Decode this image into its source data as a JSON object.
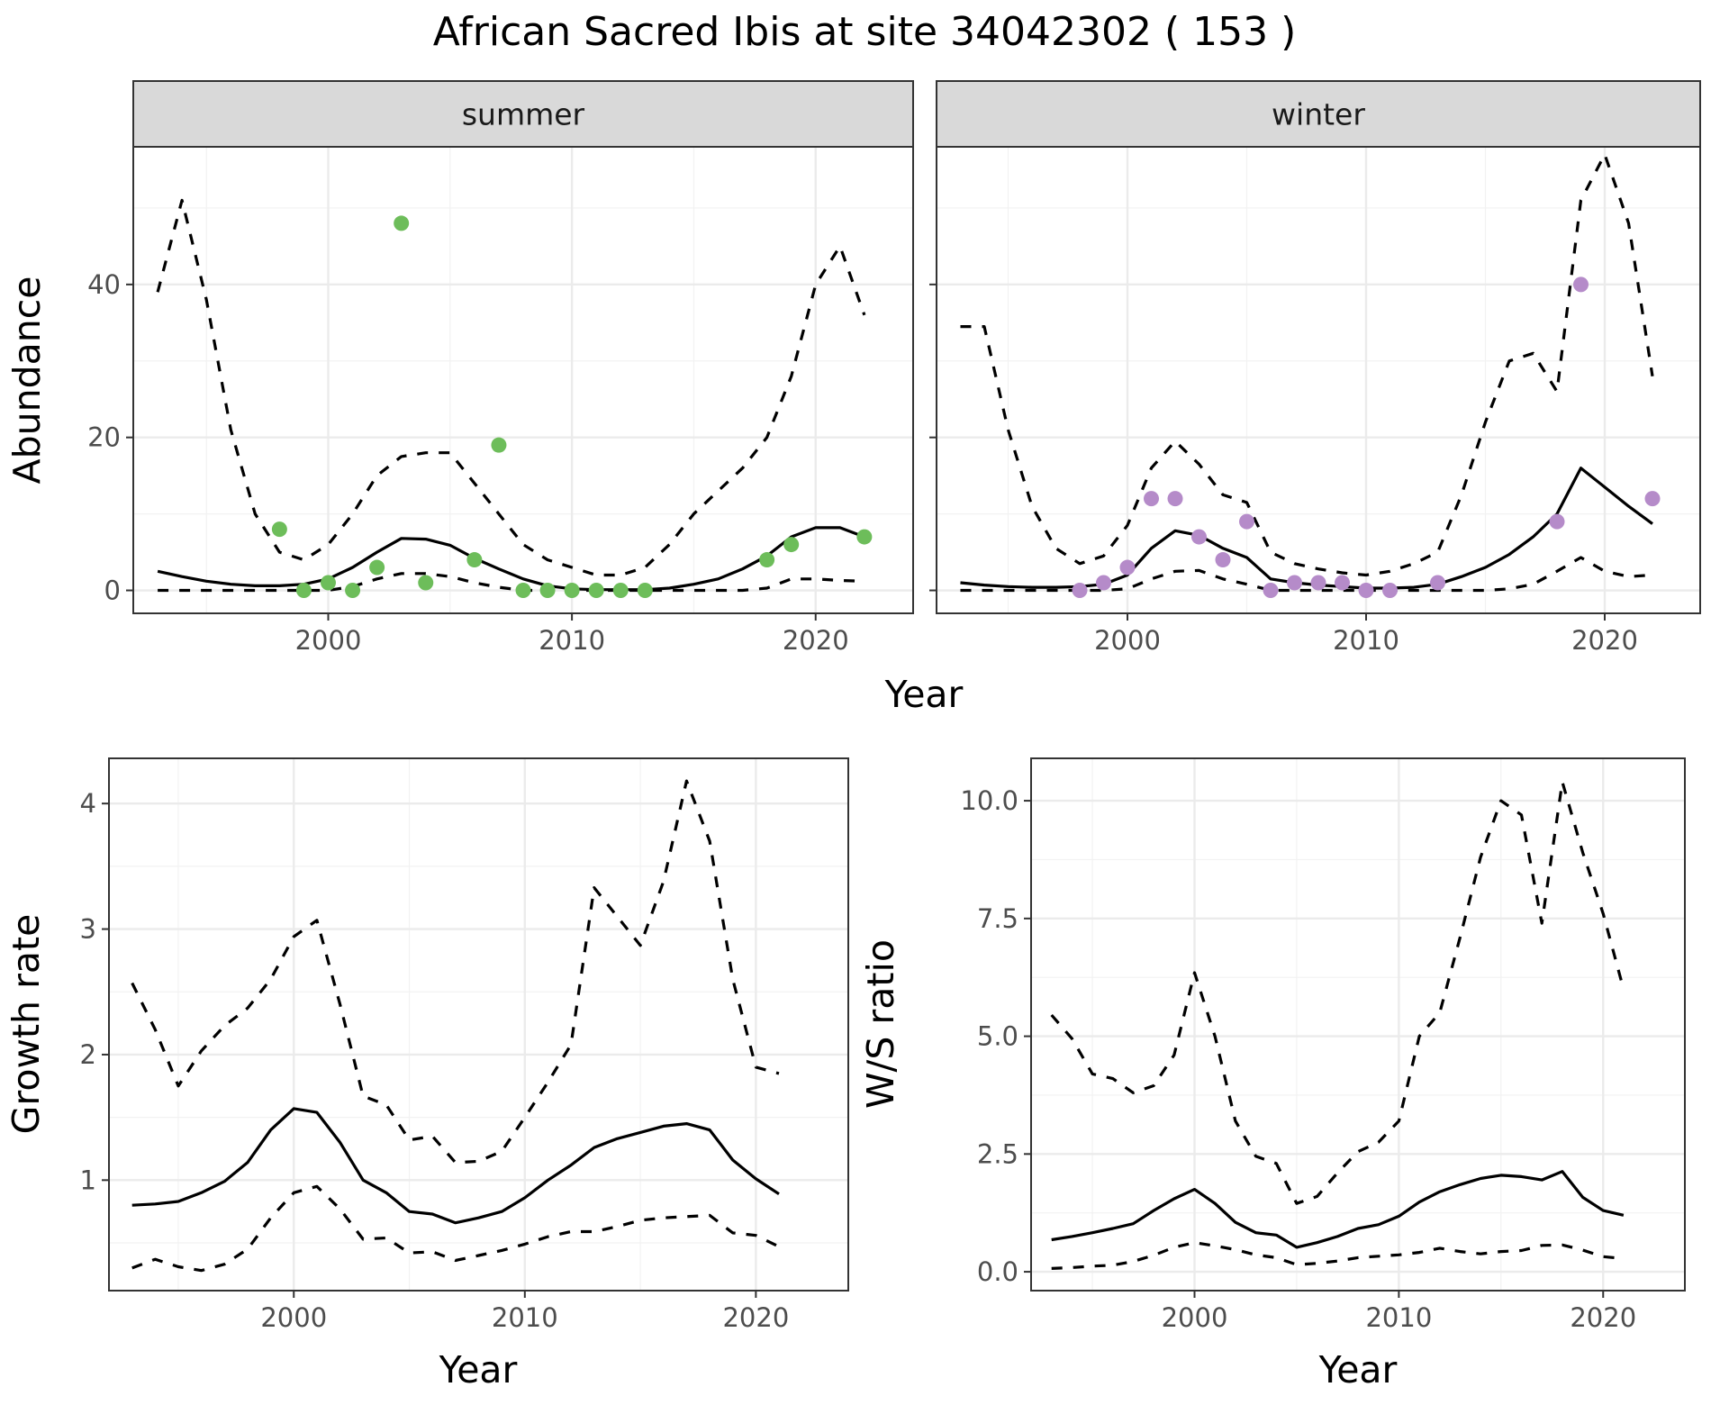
{
  "title": "African Sacred Ibis at site 34042302 ( 153 )",
  "colors": {
    "summer_points": "#6dbd5a",
    "winter_points": "#b58bc9",
    "lines": "#000000"
  },
  "chart_data": [
    {
      "type": "line",
      "name": "summer",
      "facet_label": "summer",
      "xlabel": "",
      "ylabel": "Abundance",
      "xlim": [
        1992,
        2024
      ],
      "ylim": [
        -3,
        58
      ],
      "x_ticks": [
        2000,
        2010,
        2020
      ],
      "y_ticks": [
        0,
        20,
        40
      ],
      "x_tick_labels": [
        "2000",
        "2010",
        "2020"
      ],
      "y_tick_labels": [
        "0",
        "20",
        "40"
      ],
      "x": [
        1993,
        1994,
        1995,
        1996,
        1997,
        1998,
        1999,
        2000,
        2001,
        2002,
        2003,
        2004,
        2005,
        2006,
        2007,
        2008,
        2009,
        2010,
        2011,
        2012,
        2013,
        2014,
        2015,
        2016,
        2017,
        2018,
        2019,
        2020,
        2021,
        2022
      ],
      "series": [
        {
          "role": "estimate",
          "values": [
            2.5,
            1.8,
            1.2,
            0.8,
            0.6,
            0.6,
            0.8,
            1.5,
            3.0,
            5.0,
            6.8,
            6.7,
            5.9,
            4.2,
            2.8,
            1.5,
            0.6,
            0.2,
            0.1,
            0.1,
            0.1,
            0.3,
            0.8,
            1.5,
            2.8,
            4.5,
            7.0,
            8.2,
            8.2,
            7.0
          ]
        },
        {
          "role": "upper",
          "values": [
            39,
            51,
            38,
            21,
            10,
            5,
            4,
            6,
            10,
            15,
            17.5,
            18,
            18,
            14,
            10,
            6,
            4,
            3,
            2,
            2,
            3,
            6,
            10,
            13,
            16,
            20,
            28,
            40,
            45,
            36
          ]
        },
        {
          "role": "lower",
          "values": [
            0,
            0,
            0,
            0,
            0,
            0,
            0,
            0,
            0.5,
            1.5,
            2.2,
            2.2,
            1.8,
            1.0,
            0.4,
            0,
            0,
            0,
            0,
            0,
            0,
            0,
            0,
            0,
            0,
            0.3,
            1.5,
            1.5,
            1.3,
            1.2
          ]
        }
      ],
      "points": {
        "x": [
          1998,
          1999,
          2000,
          2001,
          2002,
          2003,
          2004,
          2006,
          2007,
          2008,
          2009,
          2010,
          2011,
          2012,
          2013,
          2018,
          2019,
          2022
        ],
        "y": [
          8,
          0,
          1,
          0,
          3,
          48,
          1,
          4,
          19,
          0,
          0,
          0,
          0,
          0,
          0,
          4,
          6,
          7
        ]
      }
    },
    {
      "type": "line",
      "name": "winter",
      "facet_label": "winter",
      "xlabel": "",
      "ylabel": "",
      "xlim": [
        1992,
        2024
      ],
      "ylim": [
        -3,
        58
      ],
      "x_ticks": [
        2000,
        2010,
        2020
      ],
      "y_ticks": [
        0,
        20,
        40
      ],
      "x_tick_labels": [
        "2000",
        "2010",
        "2020"
      ],
      "y_tick_labels": [
        "0",
        "20",
        "40"
      ],
      "x": [
        1993,
        1994,
        1995,
        1996,
        1997,
        1998,
        1999,
        2000,
        2001,
        2002,
        2003,
        2004,
        2005,
        2006,
        2007,
        2008,
        2009,
        2010,
        2011,
        2012,
        2013,
        2014,
        2015,
        2016,
        2017,
        2018,
        2019,
        2020,
        2021,
        2022
      ],
      "series": [
        {
          "role": "estimate",
          "values": [
            1.0,
            0.7,
            0.5,
            0.4,
            0.4,
            0.5,
            0.8,
            2.0,
            5.5,
            7.8,
            7.2,
            5.5,
            4.3,
            1.5,
            1.0,
            0.7,
            0.5,
            0.3,
            0.3,
            0.4,
            0.8,
            1.8,
            3.0,
            4.7,
            7.0,
            10.0,
            16.0,
            13.5,
            11.0,
            8.7
          ]
        },
        {
          "role": "upper",
          "values": [
            34.5,
            34.5,
            21,
            11,
            5.5,
            3.5,
            4.5,
            8.5,
            16,
            19.5,
            16.5,
            12.5,
            11.5,
            5,
            3.5,
            2.8,
            2.3,
            2,
            2.5,
            3.5,
            5,
            12.5,
            22,
            30,
            31,
            26,
            51,
            57,
            48,
            28
          ]
        },
        {
          "role": "lower",
          "values": [
            0,
            0,
            0,
            0,
            0,
            0,
            0,
            0.2,
            1.5,
            2.5,
            2.6,
            1.5,
            0.8,
            0,
            0,
            0,
            0,
            0,
            0,
            0,
            0,
            0,
            0,
            0.2,
            0.8,
            2.5,
            4.3,
            2.5,
            1.8,
            2.0
          ]
        }
      ],
      "points": {
        "x": [
          1998,
          1999,
          2000,
          2001,
          2002,
          2003,
          2004,
          2005,
          2006,
          2007,
          2008,
          2009,
          2010,
          2011,
          2013,
          2018,
          2019,
          2022
        ],
        "y": [
          0,
          1,
          3,
          12,
          12,
          7,
          4,
          9,
          0,
          1,
          1,
          1,
          0,
          0,
          1,
          9,
          40,
          12
        ]
      }
    },
    {
      "type": "line",
      "name": "growth",
      "xlabel": "Year",
      "ylabel": "Growth rate",
      "xlim": [
        1992,
        2024
      ],
      "ylim": [
        0.12,
        4.36
      ],
      "x_ticks": [
        2000,
        2010,
        2020
      ],
      "y_ticks": [
        1,
        2,
        3,
        4
      ],
      "x_tick_labels": [
        "2000",
        "2010",
        "2020"
      ],
      "y_tick_labels": [
        "1",
        "2",
        "3",
        "4"
      ],
      "x": [
        1993,
        1994,
        1995,
        1996,
        1997,
        1998,
        1999,
        2000,
        2001,
        2002,
        2003,
        2004,
        2005,
        2006,
        2007,
        2008,
        2009,
        2010,
        2011,
        2012,
        2013,
        2014,
        2015,
        2016,
        2017,
        2018,
        2019,
        2020,
        2021
      ],
      "series": [
        {
          "role": "estimate",
          "values": [
            0.8,
            0.81,
            0.83,
            0.9,
            0.99,
            1.14,
            1.4,
            1.57,
            1.54,
            1.3,
            1.0,
            0.9,
            0.75,
            0.73,
            0.66,
            0.7,
            0.75,
            0.86,
            1.0,
            1.12,
            1.26,
            1.33,
            1.38,
            1.43,
            1.45,
            1.4,
            1.16,
            1.01,
            0.89
          ]
        },
        {
          "role": "upper",
          "values": [
            2.57,
            2.2,
            1.75,
            2.03,
            2.23,
            2.37,
            2.6,
            2.94,
            3.07,
            2.4,
            1.67,
            1.6,
            1.32,
            1.35,
            1.14,
            1.15,
            1.23,
            1.5,
            1.78,
            2.08,
            3.33,
            3.1,
            2.87,
            3.38,
            4.18,
            3.7,
            2.6,
            1.9,
            1.85
          ]
        },
        {
          "role": "lower",
          "values": [
            0.3,
            0.37,
            0.31,
            0.28,
            0.33,
            0.45,
            0.7,
            0.9,
            0.95,
            0.77,
            0.53,
            0.54,
            0.42,
            0.43,
            0.36,
            0.4,
            0.44,
            0.49,
            0.55,
            0.59,
            0.59,
            0.63,
            0.68,
            0.7,
            0.71,
            0.72,
            0.58,
            0.56,
            0.47
          ]
        }
      ]
    },
    {
      "type": "line",
      "name": "ratio",
      "xlabel": "Year",
      "ylabel": "W/S ratio",
      "xlim": [
        1992,
        2024
      ],
      "ylim": [
        -0.4,
        10.9
      ],
      "x_ticks": [
        2000,
        2010,
        2020
      ],
      "y_ticks": [
        0,
        2.5,
        5,
        7.5,
        10
      ],
      "x_tick_labels": [
        "2000",
        "2010",
        "2020"
      ],
      "y_tick_labels": [
        "0.0",
        "2.5",
        "5.0",
        "7.5",
        "10.0"
      ],
      "x": [
        1993,
        1994,
        1995,
        1996,
        1997,
        1998,
        1999,
        2000,
        2001,
        2002,
        2003,
        2004,
        2005,
        2006,
        2007,
        2008,
        2009,
        2010,
        2011,
        2012,
        2013,
        2014,
        2015,
        2016,
        2017,
        2018,
        2019,
        2020,
        2021
      ],
      "series": [
        {
          "role": "estimate",
          "values": [
            0.68,
            0.75,
            0.83,
            0.92,
            1.02,
            1.3,
            1.55,
            1.75,
            1.45,
            1.05,
            0.83,
            0.78,
            0.52,
            0.62,
            0.75,
            0.92,
            1.0,
            1.18,
            1.48,
            1.7,
            1.85,
            1.98,
            2.05,
            2.02,
            1.95,
            2.13,
            1.58,
            1.3,
            1.2
          ]
        },
        {
          "role": "upper",
          "values": [
            5.45,
            4.95,
            4.2,
            4.1,
            3.8,
            3.95,
            4.6,
            6.35,
            5.0,
            3.2,
            2.45,
            2.3,
            1.45,
            1.6,
            2.1,
            2.55,
            2.75,
            3.2,
            5.0,
            5.5,
            7.1,
            8.8,
            10.0,
            9.7,
            7.4,
            10.4,
            8.9,
            7.6,
            6.0
          ]
        },
        {
          "role": "lower",
          "values": [
            0.07,
            0.09,
            0.12,
            0.14,
            0.22,
            0.35,
            0.52,
            0.62,
            0.55,
            0.47,
            0.36,
            0.3,
            0.15,
            0.18,
            0.23,
            0.3,
            0.33,
            0.36,
            0.41,
            0.5,
            0.43,
            0.38,
            0.43,
            0.45,
            0.56,
            0.57,
            0.46,
            0.32,
            0.28
          ]
        }
      ]
    }
  ]
}
